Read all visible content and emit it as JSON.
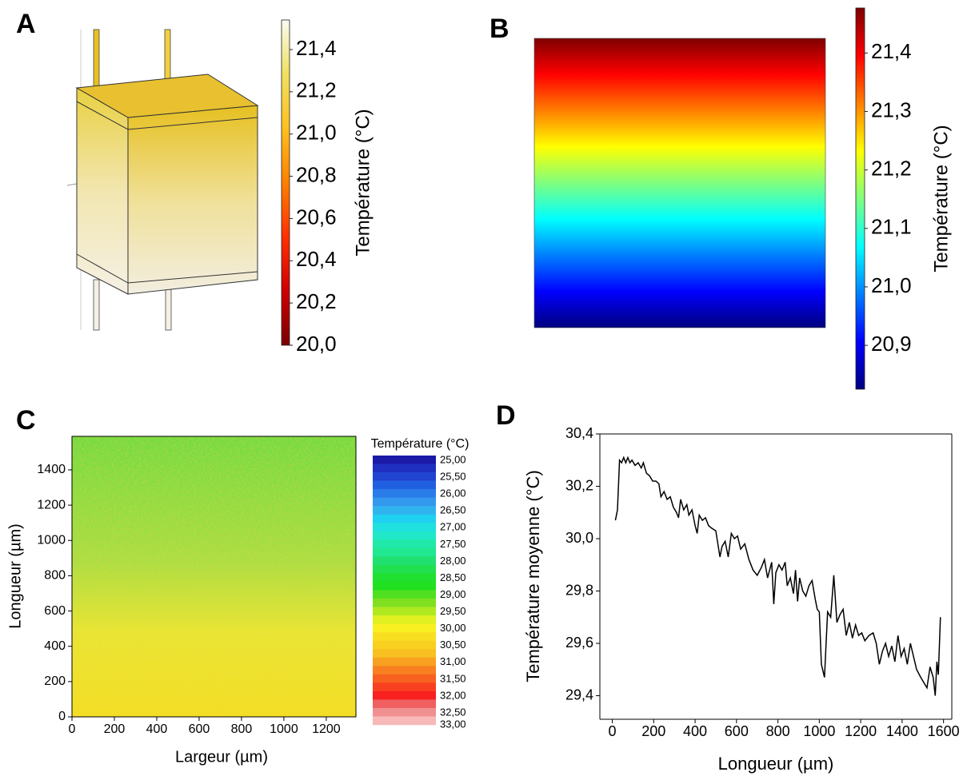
{
  "chart_data": [
    {
      "type": "surface",
      "label": "A",
      "colorbar": {
        "title": "Température (°C)",
        "lim": [
          20.0,
          21.54
        ],
        "ticks": [
          {
            "value": 20.0,
            "label": "20,0"
          },
          {
            "value": 20.2,
            "label": "20,2"
          },
          {
            "value": 20.4,
            "label": "20,4"
          },
          {
            "value": 20.6,
            "label": "20,6"
          },
          {
            "value": 20.8,
            "label": "20,8"
          },
          {
            "value": 21.0,
            "label": "21,0"
          },
          {
            "value": 21.2,
            "label": "21,2"
          },
          {
            "value": 21.4,
            "label": "21,4"
          }
        ],
        "colors": [
          "#7a0000",
          "#d00000",
          "#ff3000",
          "#ff8000",
          "#ffc020",
          "#f0e060",
          "#fbfbf0"
        ]
      }
    },
    {
      "type": "gradient",
      "label": "B",
      "colorbar": {
        "title": "Température (°C)",
        "lim": [
          20.825,
          21.477
        ],
        "ticks": [
          {
            "value": 20.9,
            "label": "20,9"
          },
          {
            "value": 21.0,
            "label": "21,0"
          },
          {
            "value": 21.1,
            "label": "21,1"
          },
          {
            "value": 21.2,
            "label": "21,2"
          },
          {
            "value": 21.3,
            "label": "21,3"
          },
          {
            "value": 21.4,
            "label": "21,4"
          }
        ],
        "colors": [
          "#00007f",
          "#0000ff",
          "#007fff",
          "#00ffff",
          "#7fff7f",
          "#ffff00",
          "#ff7f00",
          "#ff0000",
          "#7f0000"
        ]
      }
    },
    {
      "type": "heatmap",
      "label": "C",
      "xlabel": "Largeur (µm)",
      "ylabel": "Longueur (µm)",
      "xlim": [
        0,
        1340
      ],
      "ylim": [
        0,
        1590
      ],
      "xticks": [
        0,
        200,
        400,
        600,
        800,
        1000,
        1200
      ],
      "yticks": [
        0,
        200,
        400,
        600,
        800,
        1000,
        1200,
        1400
      ],
      "legend": {
        "title": "Température (°C)",
        "lim": [
          25,
          33
        ],
        "levels": [
          {
            "value": 25.0,
            "label": "25,00"
          },
          {
            "value": 25.5,
            "label": "25,50"
          },
          {
            "value": 26.0,
            "label": "26,00"
          },
          {
            "value": 26.5,
            "label": "26,50"
          },
          {
            "value": 27.0,
            "label": "27,00"
          },
          {
            "value": 27.5,
            "label": "27,50"
          },
          {
            "value": 28.0,
            "label": "28,00"
          },
          {
            "value": 28.5,
            "label": "28,50"
          },
          {
            "value": 29.0,
            "label": "29,00"
          },
          {
            "value": 29.5,
            "label": "29,50"
          },
          {
            "value": 30.0,
            "label": "30,00"
          },
          {
            "value": 30.5,
            "label": "30,50"
          },
          {
            "value": 31.0,
            "label": "31,00"
          },
          {
            "value": 31.5,
            "label": "31,50"
          },
          {
            "value": 32.0,
            "label": "32,00"
          },
          {
            "value": 32.5,
            "label": "32,50"
          },
          {
            "value": 33.0,
            "label": "33,00"
          }
        ],
        "colors": [
          "#1a1aa6",
          "#1f2fc0",
          "#1f44d0",
          "#2060e0",
          "#2a7ce8",
          "#3498ee",
          "#30b4f0",
          "#20d0f0",
          "#20e0e0",
          "#20e8c8",
          "#20e8a8",
          "#20e890",
          "#20e070",
          "#20e050",
          "#20e030",
          "#20e020",
          "#50e020",
          "#80e020",
          "#b0e820",
          "#e0f020",
          "#f8f020",
          "#f8e020",
          "#f8d020",
          "#f8c020",
          "#f8a020",
          "#f88020",
          "#f86020",
          "#f84020",
          "#f82020",
          "#f06060",
          "#f09090",
          "#f8b8b8"
        ]
      }
    },
    {
      "type": "line",
      "label": "D",
      "xlabel": "Longueur (µm)",
      "ylabel": "Température moyenne (°C)",
      "color": "#000000",
      "xlim": [
        -60,
        1640
      ],
      "ylim": [
        29.31,
        30.4
      ],
      "xticks": [
        0,
        200,
        400,
        600,
        800,
        1000,
        1200,
        1400,
        1600
      ],
      "yticks": [
        {
          "value": 29.4,
          "label": "29,4"
        },
        {
          "value": 29.6,
          "label": "29,6"
        },
        {
          "value": 29.8,
          "label": "29,8"
        },
        {
          "value": 30.0,
          "label": "30,0"
        },
        {
          "value": 30.2,
          "label": "30,2"
        },
        {
          "value": 30.4,
          "label": "30,4"
        }
      ],
      "x": [
        15,
        25,
        35,
        45,
        55,
        65,
        75,
        85,
        95,
        110,
        125,
        140,
        150,
        165,
        180,
        195,
        210,
        225,
        235,
        250,
        265,
        280,
        295,
        310,
        320,
        330,
        345,
        360,
        370,
        385,
        400,
        410,
        420,
        435,
        450,
        465,
        480,
        500,
        520,
        530,
        545,
        560,
        575,
        590,
        605,
        620,
        640,
        660,
        680,
        700,
        720,
        735,
        750,
        770,
        780,
        790,
        805,
        820,
        835,
        845,
        860,
        875,
        885,
        895,
        905,
        920,
        935,
        950,
        965,
        980,
        990,
        1000,
        1010,
        1025,
        1040,
        1055,
        1070,
        1085,
        1100,
        1115,
        1130,
        1145,
        1160,
        1175,
        1190,
        1205,
        1220,
        1240,
        1260,
        1275,
        1290,
        1305,
        1320,
        1335,
        1350,
        1365,
        1380,
        1395,
        1410,
        1425,
        1440,
        1455,
        1470,
        1490,
        1505,
        1520,
        1535,
        1550,
        1560,
        1568,
        1575,
        1585
      ],
      "values": [
        30.07,
        30.11,
        30.3,
        30.29,
        30.31,
        30.29,
        30.31,
        30.29,
        30.3,
        30.28,
        30.29,
        30.27,
        30.29,
        30.25,
        30.24,
        30.22,
        30.22,
        30.21,
        30.16,
        30.18,
        30.15,
        30.16,
        30.12,
        30.1,
        30.08,
        30.15,
        30.11,
        30.13,
        30.09,
        30.11,
        30.05,
        30.02,
        30.09,
        30.07,
        30.08,
        30.05,
        30.04,
        30.03,
        29.93,
        29.97,
        29.99,
        29.93,
        30.02,
        30.0,
        30.01,
        29.96,
        29.98,
        29.92,
        29.88,
        29.86,
        29.89,
        29.92,
        29.85,
        29.91,
        29.75,
        29.87,
        29.9,
        29.88,
        29.91,
        29.82,
        29.85,
        29.79,
        29.88,
        29.76,
        29.85,
        29.8,
        29.78,
        29.82,
        29.84,
        29.77,
        29.73,
        29.72,
        29.52,
        29.47,
        29.72,
        29.7,
        29.86,
        29.68,
        29.71,
        29.73,
        29.63,
        29.68,
        29.62,
        29.67,
        29.63,
        29.64,
        29.61,
        29.63,
        29.64,
        29.6,
        29.52,
        29.57,
        29.6,
        29.55,
        29.59,
        29.53,
        29.63,
        29.55,
        29.58,
        29.52,
        29.6,
        29.55,
        29.5,
        29.47,
        29.45,
        29.43,
        29.51,
        29.47,
        29.4,
        29.53,
        29.48,
        29.7
      ]
    }
  ]
}
